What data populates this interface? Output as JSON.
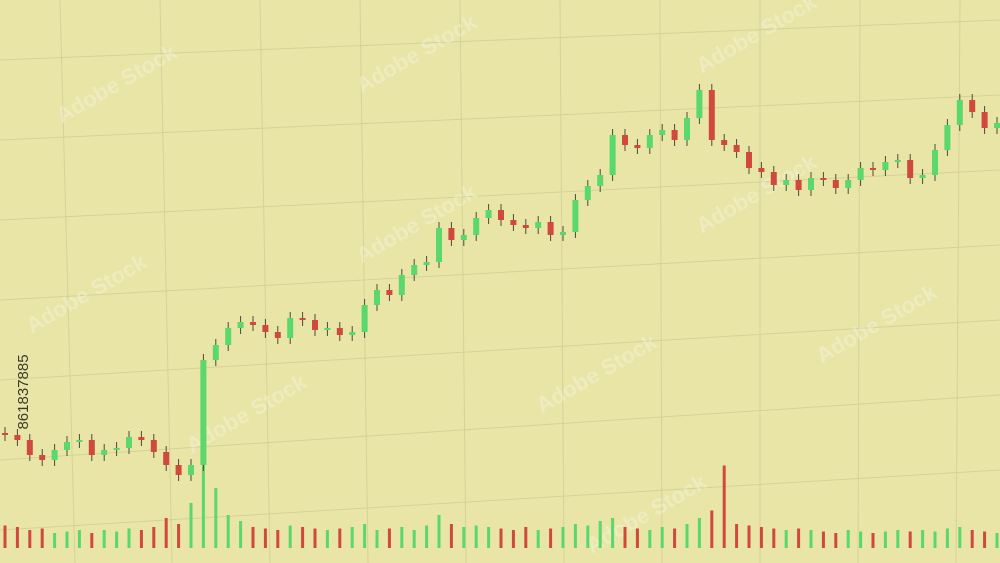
{
  "stock_id": "861837885",
  "watermark": "Adobe Stock",
  "chart_data": {
    "type": "candlestick",
    "up_color": "#5ad86b",
    "down_color": "#d0493c",
    "ylim": [
      0,
      563
    ],
    "y2lim": [
      0,
      100
    ],
    "open": [
      130,
      128,
      123,
      108,
      103,
      113,
      121,
      123,
      108,
      113,
      115,
      126,
      123,
      111,
      98,
      88,
      98,
      203,
      218,
      235,
      241,
      238,
      231,
      225,
      245,
      243,
      233,
      235,
      228,
      231,
      258,
      273,
      268,
      288,
      298,
      301,
      335,
      323,
      328,
      345,
      353,
      343,
      338,
      335,
      341,
      328,
      331,
      363,
      377,
      388,
      428,
      418,
      415,
      428,
      433,
      423,
      445,
      473,
      423,
      418,
      411,
      395,
      391,
      378,
      383,
      373,
      385,
      383,
      375,
      383,
      395,
      393,
      401,
      403,
      385,
      388,
      413,
      438,
      463,
      451,
      435
    ],
    "high": [
      136,
      134,
      129,
      114,
      119,
      127,
      129,
      129,
      119,
      121,
      132,
      132,
      129,
      117,
      104,
      104,
      209,
      224,
      241,
      247,
      247,
      244,
      237,
      251,
      251,
      249,
      241,
      241,
      237,
      264,
      279,
      279,
      294,
      304,
      307,
      341,
      341,
      334,
      351,
      359,
      359,
      349,
      344,
      347,
      347,
      337,
      369,
      383,
      394,
      434,
      434,
      424,
      434,
      439,
      439,
      451,
      479,
      479,
      429,
      424,
      417,
      401,
      397,
      389,
      389,
      391,
      391,
      389,
      389,
      401,
      401,
      407,
      409,
      409,
      394,
      419,
      444,
      469,
      469,
      457,
      446
    ],
    "low": [
      122,
      117,
      102,
      97,
      97,
      107,
      115,
      102,
      102,
      107,
      109,
      117,
      105,
      92,
      82,
      82,
      92,
      197,
      212,
      229,
      232,
      225,
      219,
      219,
      237,
      227,
      227,
      222,
      222,
      225,
      252,
      262,
      262,
      282,
      292,
      295,
      317,
      317,
      322,
      339,
      337,
      332,
      329,
      329,
      322,
      322,
      325,
      357,
      371,
      382,
      412,
      409,
      409,
      422,
      417,
      417,
      439,
      417,
      412,
      405,
      389,
      385,
      372,
      372,
      367,
      367,
      377,
      369,
      369,
      377,
      387,
      387,
      395,
      379,
      379,
      382,
      407,
      432,
      445,
      429,
      429
    ],
    "close": [
      128,
      123,
      108,
      103,
      113,
      121,
      123,
      108,
      113,
      115,
      126,
      123,
      111,
      98,
      88,
      98,
      203,
      218,
      235,
      241,
      238,
      231,
      225,
      245,
      243,
      233,
      235,
      228,
      231,
      258,
      273,
      268,
      288,
      298,
      301,
      335,
      323,
      328,
      345,
      353,
      343,
      338,
      335,
      341,
      328,
      331,
      363,
      377,
      388,
      428,
      418,
      415,
      428,
      433,
      423,
      445,
      473,
      423,
      418,
      411,
      395,
      391,
      378,
      383,
      373,
      385,
      383,
      375,
      383,
      395,
      393,
      401,
      403,
      385,
      388,
      413,
      438,
      463,
      451,
      435,
      440
    ],
    "volume": [
      15,
      14,
      12,
      13,
      10,
      11,
      12,
      10,
      12,
      11,
      13,
      12,
      14,
      20,
      16,
      30,
      85,
      40,
      22,
      18,
      14,
      13,
      12,
      15,
      14,
      13,
      12,
      13,
      14,
      16,
      12,
      13,
      14,
      12,
      15,
      22,
      16,
      14,
      15,
      14,
      13,
      12,
      14,
      12,
      13,
      14,
      16,
      15,
      18,
      20,
      14,
      13,
      12,
      14,
      13,
      16,
      20,
      25,
      55,
      16,
      15,
      14,
      13,
      12,
      13,
      12,
      11,
      10,
      12,
      11,
      10,
      11,
      12,
      11,
      12,
      11,
      13,
      14,
      12,
      11,
      10
    ]
  }
}
